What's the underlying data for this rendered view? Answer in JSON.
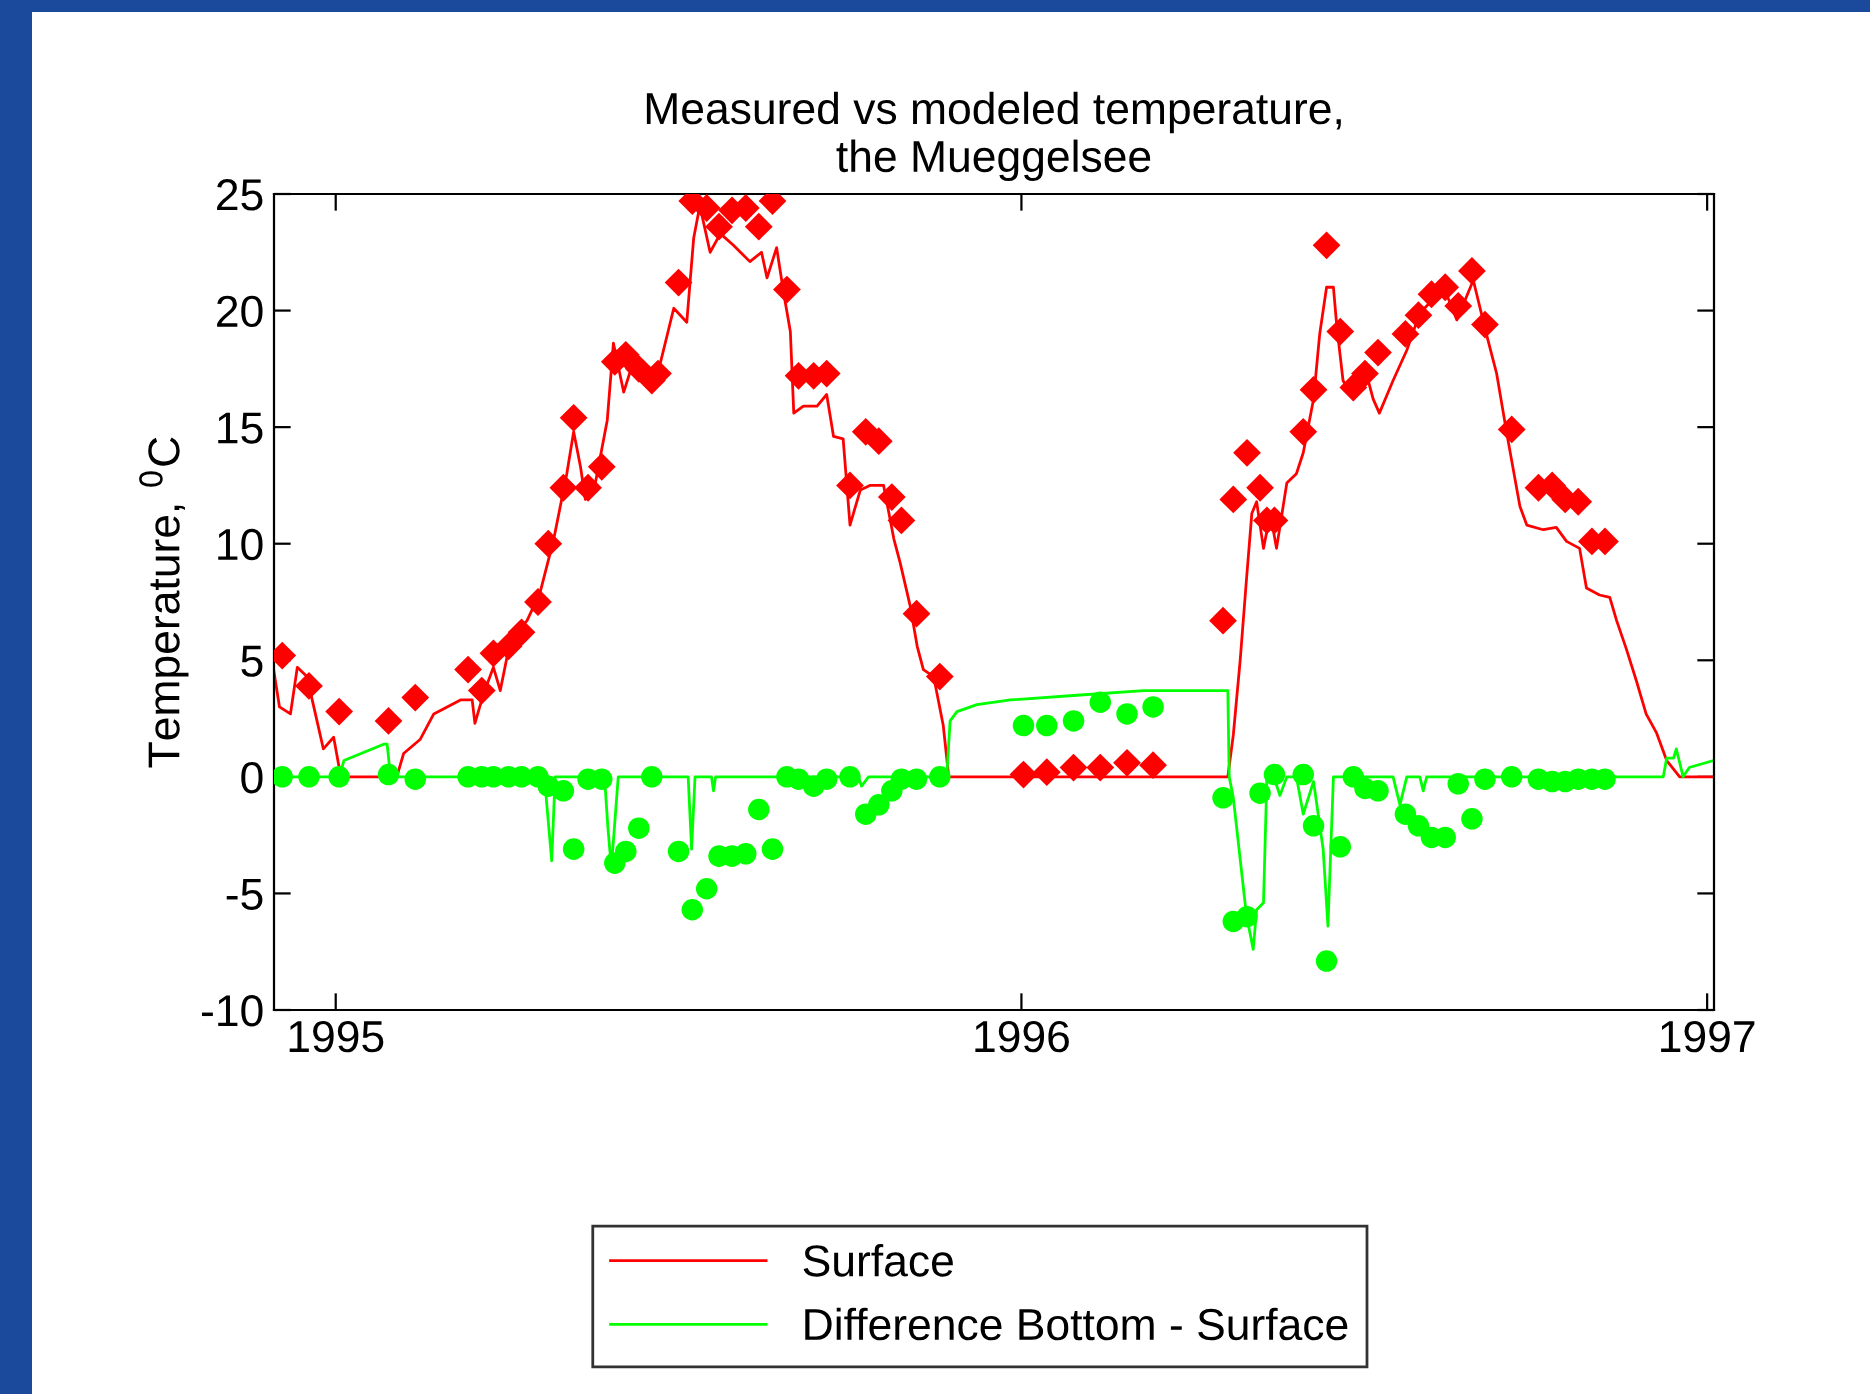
{
  "chart_data": {
    "type": "line",
    "title": "Measured vs modeled temperature,\nthe Mueggelsee",
    "ylabel": "Temperature, $^{0}$C",
    "xlim": [
      1994.91,
      1997.01
    ],
    "xticks": [
      1995,
      1996,
      1997
    ],
    "ylim": [
      -10,
      25
    ],
    "yticks": [
      -10,
      -5,
      0,
      5,
      10,
      15,
      20,
      25
    ],
    "grid": false,
    "legend": "bottom",
    "series": [
      {
        "name": "Surface",
        "color": "#ff0000",
        "marker": "none",
        "x": [
          1994.91,
          1994.918,
          1994.934,
          1994.944,
          1994.958,
          1994.982,
          1994.997,
          1995.005,
          1995.007,
          1995.089,
          1995.099,
          1995.123,
          1995.143,
          1995.182,
          1995.199,
          1995.203,
          1995.216,
          1995.23,
          1995.24,
          1995.255,
          1995.279,
          1995.298,
          1995.318,
          1995.337,
          1995.347,
          1995.357,
          1995.364,
          1995.376,
          1995.396,
          1995.405,
          1995.42,
          1995.435,
          1995.454,
          1995.468,
          1995.493,
          1995.512,
          1995.522,
          1995.531,
          1995.546,
          1995.561,
          1995.58,
          1995.604,
          1995.621,
          1995.629,
          1995.643,
          1995.653,
          1995.663,
          1995.668,
          1995.682,
          1995.702,
          1995.716,
          1995.726,
          1995.74,
          1995.75,
          1995.765,
          1995.779,
          1995.799,
          1995.814,
          1995.823,
          1995.838,
          1995.848,
          1995.857,
          1995.872,
          1995.886,
          1995.894,
          1996.301,
          1996.309,
          1996.319,
          1996.328,
          1996.336,
          1996.343,
          1996.353,
          1996.363,
          1996.372,
          1996.387,
          1996.401,
          1996.411,
          1996.426,
          1996.435,
          1996.445,
          1996.455,
          1996.46,
          1996.469,
          1996.484,
          1996.503,
          1996.513,
          1996.522,
          1996.542,
          1996.562,
          1996.581,
          1996.601,
          1996.62,
          1996.635,
          1996.659,
          1996.678,
          1996.693,
          1996.708,
          1996.727,
          1996.737,
          1996.761,
          1996.78,
          1996.795,
          1996.814,
          1996.824,
          1996.843,
          1996.858,
          1996.868,
          1996.882,
          1996.897,
          1996.911,
          1996.926,
          1996.941,
          1996.96,
          1997.009
        ],
        "values": [
          4.5,
          3.0,
          2.7,
          4.7,
          4.3,
          1.2,
          1.7,
          0.4,
          0,
          0,
          1.0,
          1.6,
          2.7,
          3.3,
          3.3,
          2.3,
          3.6,
          4.7,
          3.7,
          5.9,
          6.7,
          7.9,
          10.2,
          13.0,
          14.8,
          13.3,
          11.9,
          12.2,
          15.3,
          18.6,
          16.5,
          17.9,
          17.1,
          17.1,
          20.1,
          19.5,
          23.1,
          24.5,
          22.5,
          23.3,
          22.8,
          22.1,
          22.5,
          21.4,
          22.7,
          20.8,
          19.1,
          15.6,
          15.9,
          15.9,
          16.4,
          14.6,
          14.5,
          10.8,
          12.3,
          12.5,
          12.5,
          10.2,
          9.2,
          7.3,
          5.6,
          4.6,
          4.3,
          2.2,
          0,
          0,
          1.8,
          5.0,
          8.4,
          11.3,
          11.8,
          9.8,
          11.3,
          9.8,
          12.6,
          13.0,
          13.9,
          16.2,
          19.0,
          21.0,
          21.0,
          19.3,
          17.0,
          16.2,
          17.3,
          16.2,
          15.6,
          17.0,
          18.3,
          19.9,
          20.5,
          20.7,
          19.6,
          21.3,
          19.0,
          17.3,
          14.7,
          11.6,
          10.8,
          10.6,
          10.7,
          10.1,
          9.8,
          8.1,
          7.8,
          7.7,
          6.7,
          5.5,
          4.1,
          2.7,
          1.9,
          0.7,
          0,
          0
        ]
      },
      {
        "name": "Difference Bottom - Surface",
        "color": "#00ff00",
        "marker": "none",
        "x": [
          1994.91,
          1995.005,
          1995.012,
          1995.07,
          1995.075,
          1995.08,
          1995.305,
          1995.307,
          1995.315,
          1995.32,
          1995.392,
          1995.397,
          1995.402,
          1995.412,
          1995.514,
          1995.519,
          1995.524,
          1995.548,
          1995.551,
          1995.554,
          1995.762,
          1995.767,
          1995.777,
          1995.891,
          1995.896,
          1995.906,
          1995.935,
          1995.984,
          1996.081,
          1996.178,
          1996.301,
          1996.303,
          1996.309,
          1996.328,
          1996.338,
          1996.343,
          1996.353,
          1996.358,
          1996.368,
          1996.377,
          1996.387,
          1996.401,
          1996.411,
          1996.426,
          1996.44,
          1996.447,
          1996.455,
          1996.542,
          1996.552,
          1996.562,
          1996.581,
          1996.586,
          1996.591,
          1996.936,
          1996.941,
          1996.951,
          1996.955,
          1996.965,
          1996.974,
          1997.009
        ],
        "values": [
          0,
          0,
          0.7,
          1.4,
          1.4,
          0,
          0,
          -0.9,
          -3.6,
          0,
          0,
          -2.2,
          -3.9,
          0,
          0,
          -3.1,
          0,
          0,
          -0.6,
          0,
          0,
          -0.4,
          0,
          0,
          2.4,
          2.8,
          3.1,
          3.3,
          3.5,
          3.7,
          3.7,
          0,
          -0.9,
          -5.9,
          -7.4,
          -5.7,
          -5.4,
          0,
          0,
          -0.8,
          0,
          0,
          -1.6,
          -0.2,
          -3.1,
          -6.4,
          0,
          0,
          -1.2,
          0,
          0,
          -0.6,
          0,
          0,
          0.8,
          0.8,
          1.2,
          0,
          0.4,
          0.7
        ]
      },
      {
        "type": "scatter",
        "color": "#ff0000",
        "marker": "diamond",
        "x": [
          1994.922,
          1994.961,
          1995.005,
          1995.077,
          1995.116,
          1995.193,
          1995.213,
          1995.23,
          1995.252,
          1995.271,
          1995.295,
          1995.31,
          1995.332,
          1995.347,
          1995.368,
          1995.388,
          1995.407,
          1995.423,
          1995.442,
          1995.461,
          1995.47,
          1995.5,
          1995.52,
          1995.541,
          1995.559,
          1995.578,
          1995.598,
          1995.617,
          1995.637,
          1995.658,
          1995.675,
          1995.697,
          1995.716,
          1995.75,
          1995.773,
          1995.792,
          1995.811,
          1995.825,
          1995.847,
          1995.881,
          1996.003,
          1996.037,
          1996.076,
          1996.115,
          1996.154,
          1996.192,
          1996.294,
          1996.309,
          1996.329,
          1996.348,
          1996.358,
          1996.369,
          1996.411,
          1996.426,
          1996.445,
          1996.465,
          1996.484,
          1996.501,
          1996.52,
          1996.56,
          1996.579,
          1996.598,
          1996.618,
          1996.637,
          1996.657,
          1996.676,
          1996.715,
          1996.754,
          1996.774,
          1996.793,
          1996.812,
          1996.832,
          1996.851
        ],
        "values": [
          5.2,
          3.9,
          2.8,
          2.4,
          3.4,
          4.6,
          3.7,
          5.3,
          5.6,
          6.2,
          7.5,
          10.0,
          12.4,
          15.4,
          12.4,
          13.3,
          17.8,
          18.1,
          17.5,
          17.0,
          17.3,
          21.2,
          24.7,
          24.4,
          23.6,
          24.3,
          24.4,
          23.6,
          24.7,
          20.9,
          17.2,
          17.2,
          17.3,
          12.5,
          14.8,
          14.4,
          12.0,
          11.0,
          7.0,
          4.3,
          0.1,
          0.2,
          0.4,
          0.4,
          0.6,
          0.5,
          6.7,
          11.9,
          13.9,
          12.4,
          11.0,
          11.0,
          14.8,
          16.6,
          22.8,
          19.1,
          16.7,
          17.3,
          18.2,
          19.0,
          19.8,
          20.7,
          21.0,
          20.2,
          21.7,
          19.4,
          14.9,
          12.4,
          12.5,
          11.9,
          11.8,
          10.1,
          10.1
        ]
      },
      {
        "type": "scatter",
        "color": "#00ff00",
        "marker": "circle",
        "x": [
          1994.922,
          1994.961,
          1995.005,
          1995.077,
          1995.116,
          1995.193,
          1995.213,
          1995.23,
          1995.252,
          1995.271,
          1995.295,
          1995.31,
          1995.332,
          1995.347,
          1995.368,
          1995.388,
          1995.407,
          1995.423,
          1995.442,
          1995.461,
          1995.5,
          1995.52,
          1995.541,
          1995.559,
          1995.578,
          1995.598,
          1995.617,
          1995.637,
          1995.658,
          1995.675,
          1995.697,
          1995.716,
          1995.75,
          1995.773,
          1995.792,
          1995.811,
          1995.825,
          1995.847,
          1995.881,
          1996.003,
          1996.037,
          1996.076,
          1996.115,
          1996.154,
          1996.192,
          1996.294,
          1996.309,
          1996.329,
          1996.348,
          1996.369,
          1996.411,
          1996.426,
          1996.445,
          1996.465,
          1996.484,
          1996.501,
          1996.52,
          1996.56,
          1996.579,
          1996.598,
          1996.618,
          1996.637,
          1996.657,
          1996.676,
          1996.715,
          1996.754,
          1996.774,
          1996.793,
          1996.812,
          1996.832,
          1996.851
        ],
        "values": [
          0,
          0,
          0,
          0.1,
          -0.1,
          0,
          0,
          0,
          0,
          0,
          0,
          -0.4,
          -0.6,
          -3.1,
          -0.1,
          -0.1,
          -3.7,
          -3.2,
          -2.2,
          0,
          -3.2,
          -5.7,
          -4.8,
          -3.4,
          -3.4,
          -3.3,
          -1.4,
          -3.1,
          0,
          -0.1,
          -0.4,
          -0.1,
          0,
          -1.6,
          -1.2,
          -0.6,
          -0.1,
          -0.1,
          0,
          2.2,
          2.2,
          2.4,
          3.2,
          2.7,
          3.0,
          -0.9,
          -6.2,
          -6.0,
          -0.7,
          0.1,
          0.1,
          -2.1,
          -7.9,
          -3.0,
          0,
          -0.5,
          -0.6,
          -1.6,
          -2.1,
          -2.6,
          -2.6,
          -0.3,
          -1.8,
          -0.1,
          0,
          -0.1,
          -0.2,
          -0.2,
          -0.1,
          -0.1,
          -0.1
        ]
      }
    ]
  }
}
